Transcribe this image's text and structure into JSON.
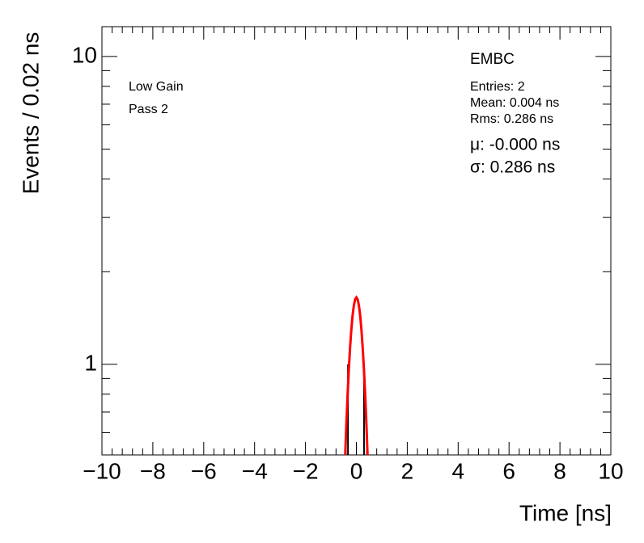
{
  "chart_data": {
    "type": "histogram",
    "x_label": "Time [ns]",
    "y_label": "Events / 0.02 ns",
    "annotations": {
      "label": "EMBC",
      "gain": "Low Gain",
      "pass": "Pass 2",
      "entries": "Entries: 2",
      "mean": "Mean: 0.004 ns",
      "rms": "Rms: 0.286 ns",
      "fit_mu": "μ: -0.000 ns",
      "fit_sigma": "σ: 0.286 ns"
    },
    "xlim": [
      -10,
      10
    ],
    "xticks": [
      {
        "value": -10,
        "label": "−10"
      },
      {
        "value": -8,
        "label": "−8"
      },
      {
        "value": -6,
        "label": "−6"
      },
      {
        "value": -4,
        "label": "−4"
      },
      {
        "value": -2,
        "label": "−2"
      },
      0,
      2,
      4,
      6,
      8,
      10
    ],
    "xminor_ticks": [
      -9.6,
      -9.2,
      -8.8,
      -8.4,
      -7.6,
      -7.2,
      -6.8,
      -6.4,
      -5.6,
      -5.2,
      -4.8,
      -4.4,
      -3.6,
      -3.2,
      -2.8,
      -2.4,
      -1.6,
      -1.2,
      -0.8,
      -0.4,
      0.4,
      0.8,
      1.2,
      1.6,
      2.4,
      2.8,
      3.2,
      3.6,
      4.4,
      4.8,
      5.2,
      5.6,
      6.4,
      6.8,
      7.2,
      7.6,
      8.4,
      8.8,
      9.2,
      9.6
    ],
    "ylim": [
      0.508,
      12.5
    ],
    "log_y": true,
    "yticks": [
      1,
      10
    ],
    "yminor_ticks": [
      0.6,
      0.7,
      0.8,
      0.9,
      2,
      3,
      4,
      5,
      6,
      7,
      8,
      9
    ],
    "series": [
      {
        "name": "Entries",
        "color": "#000000",
        "x": [
          -0.33,
          0.3
        ],
        "values": [
          1,
          1
        ]
      },
      {
        "name": "Fit",
        "color": "#ff0000",
        "x": [
          -0.45,
          -0.4,
          -0.35,
          -0.3,
          -0.25,
          -0.2,
          -0.15,
          -0.1,
          -0.05,
          0,
          0.05,
          0.1,
          0.15,
          0.2,
          0.25,
          0.3,
          0.35,
          0.4,
          0.45
        ],
        "values": [
          0.479,
          0.621,
          0.78,
          0.952,
          1.126,
          1.292,
          1.438,
          1.552,
          1.625,
          1.65,
          1.625,
          1.552,
          1.438,
          1.292,
          1.126,
          0.952,
          0.78,
          0.621,
          0.479
        ]
      }
    ]
  }
}
